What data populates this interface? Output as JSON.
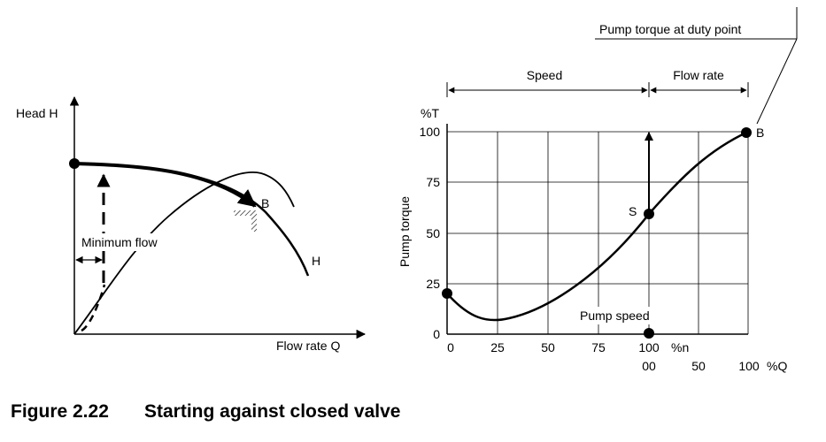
{
  "left_plot": {
    "y_axis_label": "Head H",
    "x_axis_label": "Flow rate Q",
    "minimum_flow_label": "Minimum flow",
    "point_b_label": "B",
    "curve_h_label": "H"
  },
  "right_plot": {
    "duty_point_label": "Pump torque at duty point",
    "speed_label": "Speed",
    "flow_rate_label": "Flow rate",
    "y_unit_label": "%T",
    "y_axis_label": "Pump torque",
    "y_ticks": [
      "100",
      "75",
      "50",
      "25",
      "0"
    ],
    "x_ticks_speed": [
      "0",
      "25",
      "50",
      "75",
      "100"
    ],
    "x_unit_speed": "%n",
    "x_ticks_flow": [
      "00",
      "50",
      "100"
    ],
    "x_unit_flow": "%Q",
    "point_s_label": "S",
    "point_b_label": "B",
    "pump_speed_label": "Pump speed"
  },
  "caption": {
    "number": "Figure 2.22",
    "title": "Starting against closed valve"
  }
}
